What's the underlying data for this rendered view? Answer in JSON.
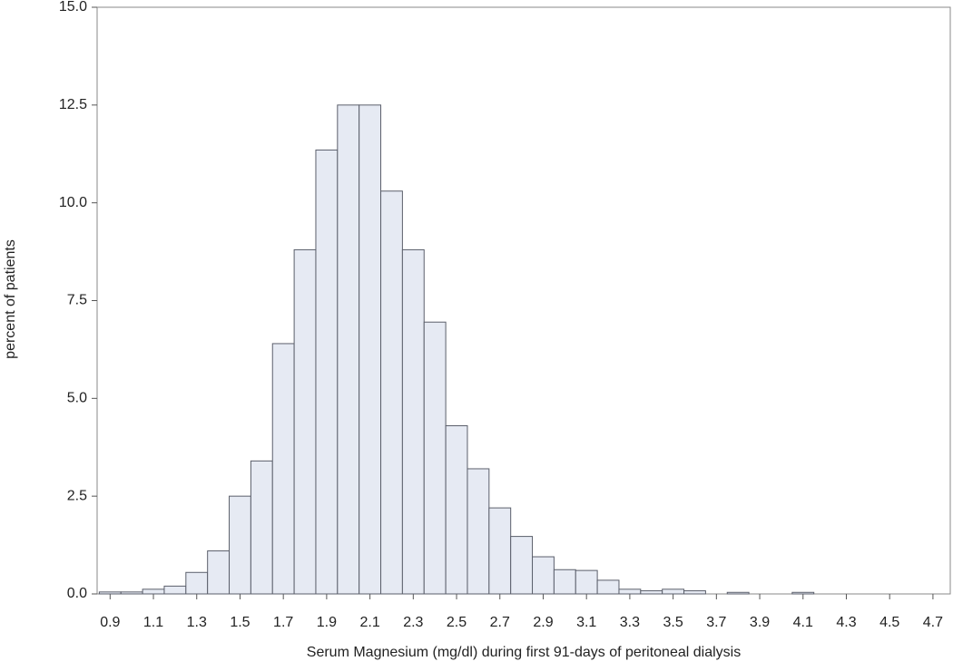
{
  "chart_data": {
    "type": "histogram",
    "x_label": "Serum Magnesium (mg/dl) during first 91-days of peritoneal dialysis",
    "y_label": "percent of patients",
    "bins": [
      0.85,
      0.95,
      1.05,
      1.15,
      1.25,
      1.35,
      1.45,
      1.55,
      1.65,
      1.75,
      1.85,
      1.95,
      2.05,
      2.15,
      2.25,
      2.35,
      2.45,
      2.55,
      2.65,
      2.75,
      2.85,
      2.95,
      3.05,
      3.15,
      3.25,
      3.35,
      3.45,
      3.55,
      3.65,
      3.75,
      3.85,
      3.95,
      4.05,
      4.15
    ],
    "values": [
      0.05,
      0.05,
      0.12,
      0.2,
      0.55,
      1.1,
      2.5,
      3.4,
      6.4,
      8.8,
      11.35,
      12.5,
      12.5,
      10.3,
      8.8,
      6.95,
      4.3,
      3.2,
      2.2,
      1.47,
      0.95,
      0.62,
      0.6,
      0.35,
      0.12,
      0.08,
      0.12,
      0.08,
      0,
      0.04,
      0,
      0,
      0.04
    ],
    "color": "#e6eaf3",
    "edge_color": "#5b5f6b",
    "xlim": [
      0.84,
      4.78
    ],
    "ylim": [
      0,
      15
    ],
    "xticks": [
      0.9,
      1.1,
      1.3,
      1.5,
      1.7,
      1.9,
      2.1,
      2.3,
      2.5,
      2.7,
      2.9,
      3.1,
      3.3,
      3.5,
      3.7,
      3.9,
      4.1,
      4.3,
      4.5,
      4.7
    ],
    "yticks": [
      {
        "value": 0,
        "label": "0.0"
      },
      2.5,
      {
        "value": 5,
        "label": "5.0"
      },
      7.5,
      {
        "value": 10,
        "label": "10.0"
      },
      12.5,
      {
        "value": 15,
        "label": "15.0"
      }
    ],
    "grid": false
  }
}
